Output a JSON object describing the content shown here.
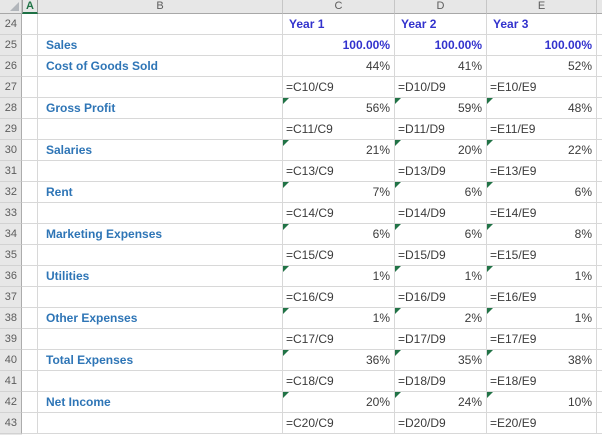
{
  "colors": {
    "label_blue": "#2E75B6",
    "value_blue": "#3232CD",
    "text_dark": "#3B3B3B",
    "error_triangle_green": "#217346",
    "selected_column_accent": "#1E7145",
    "header_gray": "#E7E7E7"
  },
  "sheet": {
    "selected_column": "A",
    "columns": [
      "A",
      "B",
      "C",
      "D",
      "E"
    ],
    "rows": [
      {
        "num": "24",
        "b": "",
        "c": "Year 1",
        "d": "Year 2",
        "e": "Year 3",
        "type": "colhead",
        "tri": false
      },
      {
        "num": "25",
        "b": "Sales",
        "c": "100.00%",
        "d": "100.00%",
        "e": "100.00%",
        "type": "total",
        "tri": false
      },
      {
        "num": "26",
        "b": "Cost of Goods Sold",
        "c": "44%",
        "d": "41%",
        "e": "52%",
        "type": "pct",
        "tri": false
      },
      {
        "num": "27",
        "b": "",
        "c": "=C10/C9",
        "d": "=D10/D9",
        "e": "=E10/E9",
        "type": "formula",
        "tri": false
      },
      {
        "num": "28",
        "b": "Gross Profit",
        "c": "56%",
        "d": "59%",
        "e": "48%",
        "type": "pct",
        "tri": true
      },
      {
        "num": "29",
        "b": "",
        "c": "=C11/C9",
        "d": "=D11/D9",
        "e": "=E11/E9",
        "type": "formula",
        "tri": false
      },
      {
        "num": "30",
        "b": "Salaries",
        "c": "21%",
        "d": "20%",
        "e": "22%",
        "type": "pct",
        "tri": true
      },
      {
        "num": "31",
        "b": "",
        "c": "=C13/C9",
        "d": "=D13/D9",
        "e": "=E13/E9",
        "type": "formula",
        "tri": false
      },
      {
        "num": "32",
        "b": "Rent",
        "c": "7%",
        "d": "6%",
        "e": "6%",
        "type": "pct",
        "tri": true
      },
      {
        "num": "33",
        "b": "",
        "c": "=C14/C9",
        "d": "=D14/D9",
        "e": "=E14/E9",
        "type": "formula",
        "tri": false
      },
      {
        "num": "34",
        "b": "Marketing Expenses",
        "c": "6%",
        "d": "6%",
        "e": "8%",
        "type": "pct",
        "tri": true
      },
      {
        "num": "35",
        "b": "",
        "c": "=C15/C9",
        "d": "=D15/D9",
        "e": "=E15/E9",
        "type": "formula",
        "tri": false
      },
      {
        "num": "36",
        "b": "Utilities",
        "c": "1%",
        "d": "1%",
        "e": "1%",
        "type": "pct",
        "tri": true
      },
      {
        "num": "37",
        "b": "",
        "c": "=C16/C9",
        "d": "=D16/D9",
        "e": "=E16/E9",
        "type": "formula",
        "tri": false
      },
      {
        "num": "38",
        "b": "Other Expenses",
        "c": "1%",
        "d": "2%",
        "e": "1%",
        "type": "pct",
        "tri": true
      },
      {
        "num": "39",
        "b": "",
        "c": "=C17/C9",
        "d": "=D17/D9",
        "e": "=E17/E9",
        "type": "formula",
        "tri": false
      },
      {
        "num": "40",
        "b": "Total Expenses",
        "c": "36%",
        "d": "35%",
        "e": "38%",
        "type": "pct",
        "tri": true
      },
      {
        "num": "41",
        "b": "",
        "c": "=C18/C9",
        "d": "=D18/D9",
        "e": "=E18/E9",
        "type": "formula",
        "tri": false
      },
      {
        "num": "42",
        "b": "Net Income",
        "c": "20%",
        "d": "24%",
        "e": "10%",
        "type": "pct",
        "tri": true
      },
      {
        "num": "43",
        "b": "",
        "c": "=C20/C9",
        "d": "=D20/D9",
        "e": "=E20/E9",
        "type": "formula",
        "tri": false
      }
    ]
  }
}
